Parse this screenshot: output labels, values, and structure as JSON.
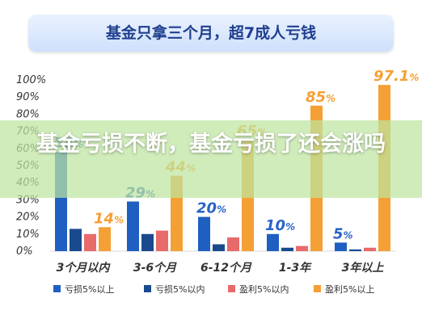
{
  "page": {
    "title": "基金只拿三个月，超7成人亏钱"
  },
  "overlay": {
    "text": "基金亏损不断，基金亏损了还会涨吗"
  },
  "colors": {
    "loss_over_5": "#1f5fc2",
    "loss_under_5": "#1a4a8e",
    "profit_under_5": "#e86a6a",
    "profit_over_5": "#f5a035",
    "label_blue": "#2a63c8",
    "label_orange": "#f5a035",
    "axis_text": "#333333"
  },
  "chart_data": {
    "type": "bar",
    "title": "基金只拿三个月，超7成人亏钱",
    "categories": [
      "3个月以内",
      "3-6个月",
      "6-12个月",
      "1-3年",
      "3年以上"
    ],
    "ylim": [
      0,
      100
    ],
    "y_ticks": [
      "0%",
      "10%",
      "20%",
      "30%",
      "40%",
      "50%",
      "60%",
      "70%",
      "80%",
      "90%",
      "100%"
    ],
    "legend_position": "bottom",
    "series": [
      {
        "name": "亏损5%以上",
        "values": [
          58,
          29,
          20,
          10,
          5
        ],
        "labels": [
          "58%",
          "29%",
          "20%",
          "10%",
          "5%"
        ]
      },
      {
        "name": "亏损5%以内",
        "values": [
          13,
          10,
          4,
          2,
          1
        ]
      },
      {
        "name": "盈利5%以内",
        "values": [
          10,
          12,
          8,
          3,
          2
        ]
      },
      {
        "name": "盈利5%以上",
        "values": [
          14,
          44,
          65,
          85,
          97.1
        ],
        "labels": [
          "14%",
          "44%",
          "65%",
          "85%",
          "97.1%"
        ]
      }
    ]
  }
}
